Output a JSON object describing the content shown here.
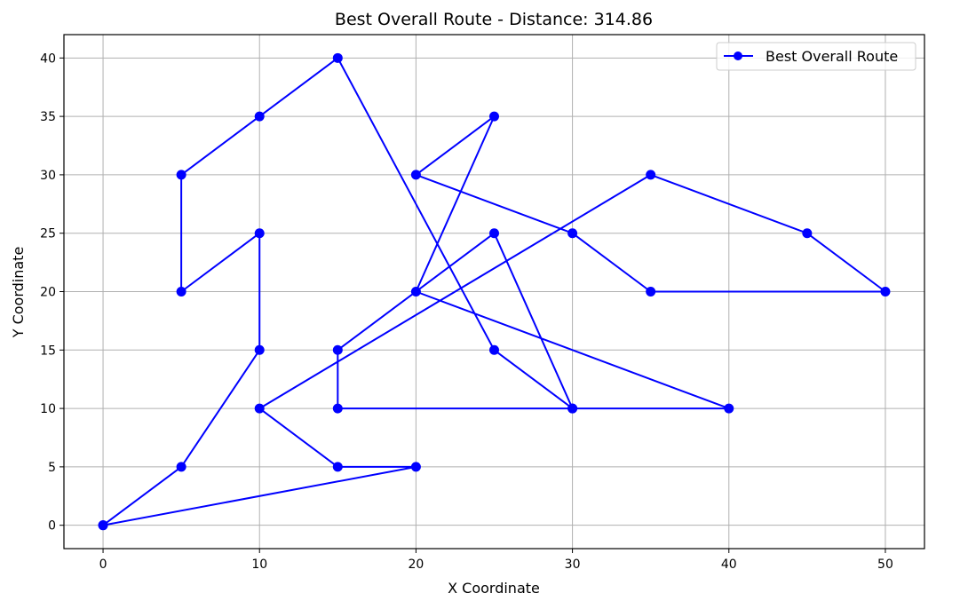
{
  "chart_data": {
    "type": "line",
    "title": "Best Overall Route - Distance: 314.86",
    "xlabel": "X Coordinate",
    "ylabel": "Y Coordinate",
    "xlim": [
      -2.5,
      52.5
    ],
    "ylim": [
      -2,
      42
    ],
    "xticks": [
      0,
      10,
      20,
      30,
      40,
      50
    ],
    "yticks": [
      0,
      5,
      10,
      15,
      20,
      25,
      30,
      35,
      40
    ],
    "grid": true,
    "legend_position": "top-right",
    "series": [
      {
        "name": "Best Overall Route",
        "color": "#0000ff",
        "marker": "circle",
        "points": [
          [
            0,
            0
          ],
          [
            5,
            5
          ],
          [
            10,
            15
          ],
          [
            10,
            25
          ],
          [
            5,
            20
          ],
          [
            5,
            30
          ],
          [
            10,
            35
          ],
          [
            15,
            40
          ],
          [
            25,
            15
          ],
          [
            30,
            10
          ],
          [
            25,
            25
          ],
          [
            15,
            15
          ],
          [
            15,
            10
          ],
          [
            30,
            10
          ],
          [
            40,
            10
          ],
          [
            20,
            20
          ],
          [
            25,
            35
          ],
          [
            20,
            30
          ],
          [
            30,
            25
          ],
          [
            35,
            20
          ],
          [
            50,
            20
          ],
          [
            45,
            25
          ],
          [
            35,
            30
          ],
          [
            10,
            10
          ],
          [
            15,
            5
          ],
          [
            20,
            5
          ],
          [
            0,
            0
          ]
        ]
      }
    ]
  }
}
